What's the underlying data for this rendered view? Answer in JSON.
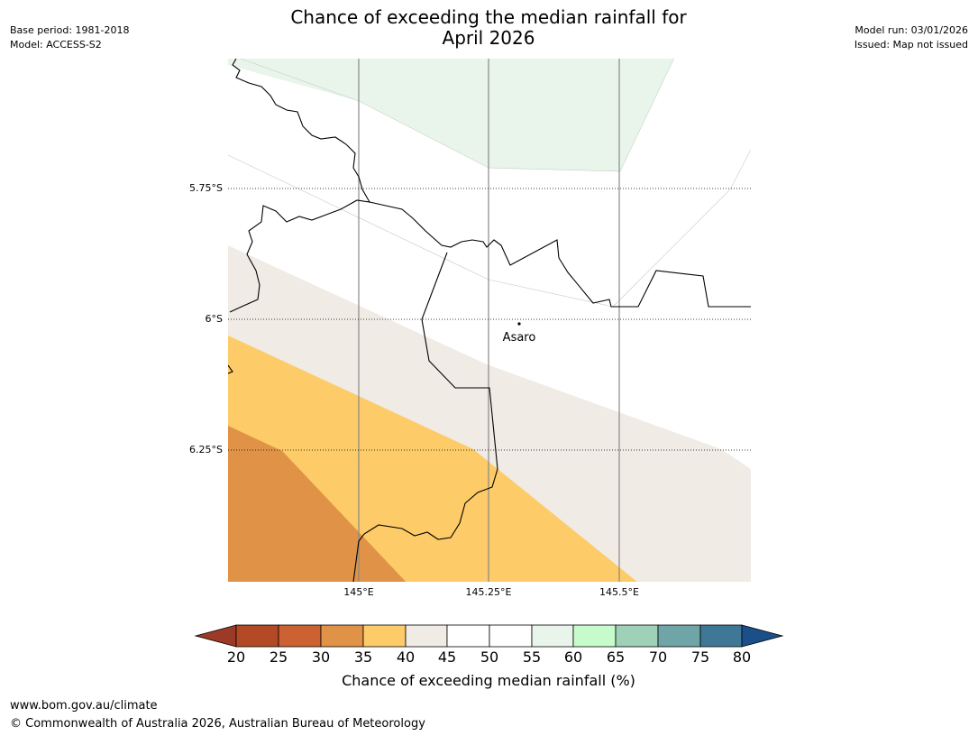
{
  "title_line1": "Chance of exceeding the median rainfall for",
  "title_line2": "April 2026",
  "meta_left": {
    "base_period": "Base period: 1981-2018",
    "model": "Model: ACCESS-S2"
  },
  "meta_right": {
    "model_run": "Model run: 03/01/2026",
    "issued": "Issued: Map not issued"
  },
  "map": {
    "lat_labels": [
      "5.75°S",
      "6°S",
      "6.25°S"
    ],
    "lon_labels": [
      "145°E",
      "145.25°E",
      "145.5°E"
    ],
    "place": {
      "name": "Asaro"
    }
  },
  "colorbar": {
    "ticks": [
      "20",
      "25",
      "30",
      "35",
      "40",
      "45",
      "50",
      "55",
      "60",
      "65",
      "70",
      "75",
      "80"
    ],
    "colors": {
      "below_20": "#9b3a26",
      "20_25": "#b44a25",
      "25_30": "#cc6232",
      "30_35": "#e09347",
      "35_40": "#fdcb68",
      "40_45": "#f0ebe5",
      "45_50": "#ffffff",
      "50_55": "#ffffff",
      "55_60": "#e9f5ea",
      "60_65": "#c8fbcb",
      "65_70": "#9fd1b8",
      "70_75": "#6fa5a7",
      "75_80": "#3f7897",
      "above_80": "#1a4f8a"
    },
    "label": "Chance of exceeding median rainfall (%)"
  },
  "footer": {
    "url": "www.bom.gov.au/climate",
    "copyright": "© Commonwealth of Australia 2026, Australian Bureau of Meteorology"
  }
}
